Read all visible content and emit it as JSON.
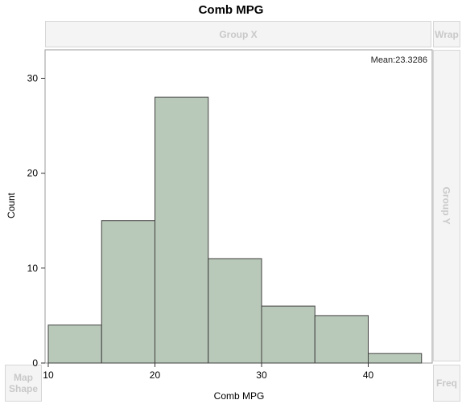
{
  "title": "Comb MPG",
  "drop_zones": {
    "group_x": "Group X",
    "wrap": "Wrap",
    "group_y": "Group Y",
    "map_shape": [
      "Map",
      "Shape"
    ],
    "freq": "Freq"
  },
  "chart_data": {
    "type": "bar",
    "bins": [
      {
        "start": 10,
        "end": 15,
        "count": 4
      },
      {
        "start": 15,
        "end": 20,
        "count": 15
      },
      {
        "start": 20,
        "end": 25,
        "count": 28
      },
      {
        "start": 25,
        "end": 30,
        "count": 11
      },
      {
        "start": 30,
        "end": 35,
        "count": 6
      },
      {
        "start": 35,
        "end": 40,
        "count": 5
      },
      {
        "start": 40,
        "end": 45,
        "count": 1
      }
    ],
    "annotation": "Mean:23.3286",
    "xlabel": "Comb MPG",
    "ylabel": "Count",
    "xlim": [
      9.7,
      46
    ],
    "ylim": [
      0,
      30
    ],
    "x_ticks": [
      10,
      20,
      30,
      40
    ],
    "y_ticks": [
      0,
      10,
      20,
      30
    ],
    "bar_color": "#b9c9b9",
    "bar_edge_color": "#404040",
    "grid": false
  }
}
